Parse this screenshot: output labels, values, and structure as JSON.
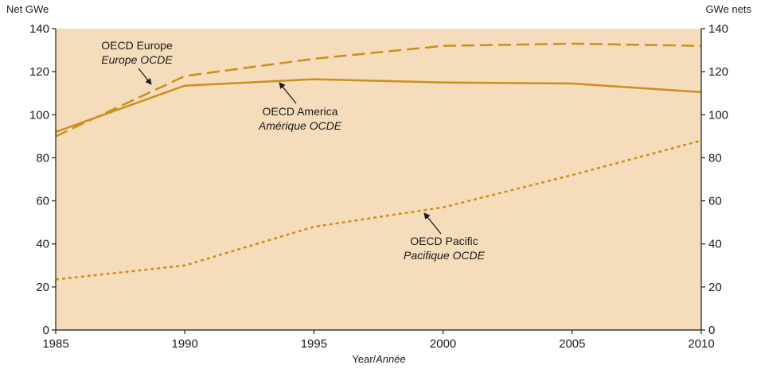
{
  "chart_data": {
    "type": "line",
    "ylabel_left": "Net GWe",
    "ylabel_right": "GWe nets",
    "xlabel": "Year/",
    "xlabel_italic": "Année",
    "xlim": [
      1985,
      2010
    ],
    "ylim": [
      0,
      140
    ],
    "x_ticks": [
      "1985",
      "1990",
      "1995",
      "2000",
      "2005",
      "2010"
    ],
    "y_ticks": [
      "0",
      "20",
      "40",
      "60",
      "80",
      "100",
      "120",
      "140"
    ],
    "grid": false,
    "series": [
      {
        "name": "OECD Europe",
        "name_alt": "Europe OCDE",
        "style": "dashed",
        "x": [
          1985,
          1990,
          1995,
          2000,
          2005,
          2010
        ],
        "y": [
          90,
          118,
          126,
          132,
          133,
          132
        ]
      },
      {
        "name": "OECD America",
        "name_alt": "Amérique OCDE",
        "style": "solid",
        "x": [
          1985,
          1990,
          1995,
          2000,
          2005,
          2010
        ],
        "y": [
          92,
          113.5,
          116.5,
          115,
          114.5,
          110.5
        ]
      },
      {
        "name": "OECD Pacific",
        "name_alt": "Pacifique OCDE",
        "style": "dotted",
        "x": [
          1985,
          1990,
          1995,
          2000,
          2005,
          2010
        ],
        "y": [
          23.5,
          30,
          48,
          57,
          72,
          88
        ]
      }
    ],
    "colors": {
      "plot_background": "#f5dcba",
      "line": "#c8901e",
      "axis": "#1a1a1a"
    }
  }
}
